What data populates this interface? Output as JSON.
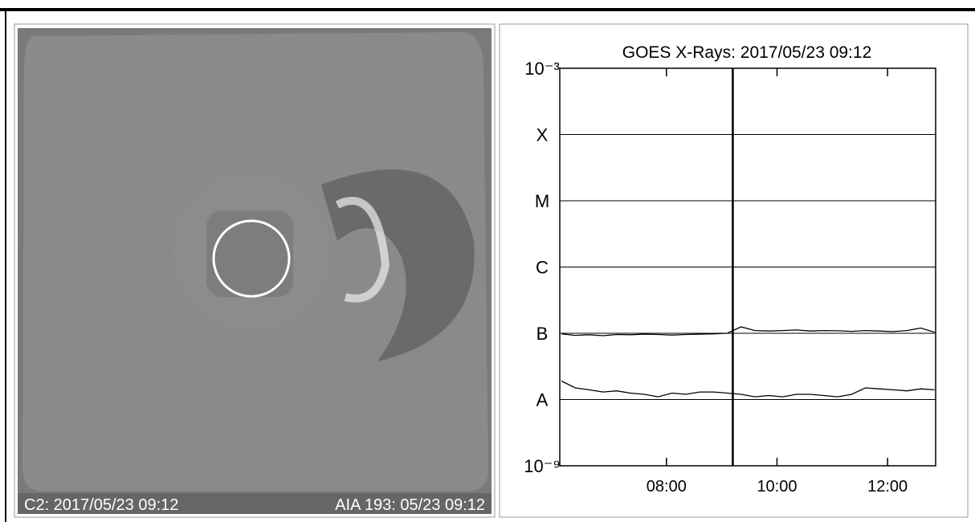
{
  "image_panel": {
    "left_label": "C2: 2017/05/23 09:12",
    "right_label": "AIA 193: 05/23 09:12"
  },
  "chart_data": {
    "type": "line",
    "title": "GOES X-Rays: 2017/05/23 09:12",
    "x": [
      6.1,
      6.35,
      6.6,
      6.85,
      7.1,
      7.35,
      7.6,
      7.85,
      8.1,
      8.35,
      8.6,
      8.85,
      9.1,
      9.35,
      9.6,
      9.85,
      10.1,
      10.35,
      10.6,
      10.85,
      11.1,
      11.35,
      11.6,
      11.85,
      12.1,
      12.35,
      12.6,
      12.85
    ],
    "series": [
      {
        "color": "#000000",
        "values": [
          9.8e-08,
          9.3e-08,
          9.5e-08,
          9.2e-08,
          9.6e-08,
          9.5e-08,
          9.7e-08,
          9.6e-08,
          9.4e-08,
          9.6e-08,
          9.7e-08,
          9.8e-08,
          1e-07,
          1.25e-07,
          1.1e-07,
          1.08e-07,
          1.1e-07,
          1.12e-07,
          1.08e-07,
          1.1e-07,
          1.09e-07,
          1.07e-07,
          1.1e-07,
          1.08e-07,
          1.06e-07,
          1.1e-07,
          1.2e-07,
          1.04e-07
        ]
      },
      {
        "color": "#000000",
        "values": [
          1.9e-08,
          1.5e-08,
          1.4e-08,
          1.3e-08,
          1.35e-08,
          1.25e-08,
          1.2e-08,
          1.1e-08,
          1.25e-08,
          1.2e-08,
          1.3e-08,
          1.3e-08,
          1.25e-08,
          1.2e-08,
          1.1e-08,
          1.15e-08,
          1.1e-08,
          1.2e-08,
          1.2e-08,
          1.15e-08,
          1.1e-08,
          1.2e-08,
          1.5e-08,
          1.45e-08,
          1.4e-08,
          1.35e-08,
          1.45e-08,
          1.4e-08
        ]
      }
    ],
    "xlim": [
      6.07,
      12.87
    ],
    "xticks": [
      {
        "value": 8,
        "label": "08:00"
      },
      {
        "value": 10,
        "label": "10:00"
      },
      {
        "value": 12,
        "label": "12:00"
      }
    ],
    "ylim": [
      1e-09,
      0.001
    ],
    "log_y": true,
    "grid": true,
    "yticks": [
      {
        "value": 1e-09,
        "label": "10⁻⁹"
      },
      {
        "value": 1e-08,
        "label": "A"
      },
      {
        "value": 1e-07,
        "label": "B"
      },
      {
        "value": 1e-06,
        "label": "C"
      },
      {
        "value": 1e-05,
        "label": "M"
      },
      {
        "value": 0.0001,
        "label": "X"
      },
      {
        "value": 0.001,
        "label": "10⁻³"
      }
    ],
    "marker_x": 9.2
  }
}
